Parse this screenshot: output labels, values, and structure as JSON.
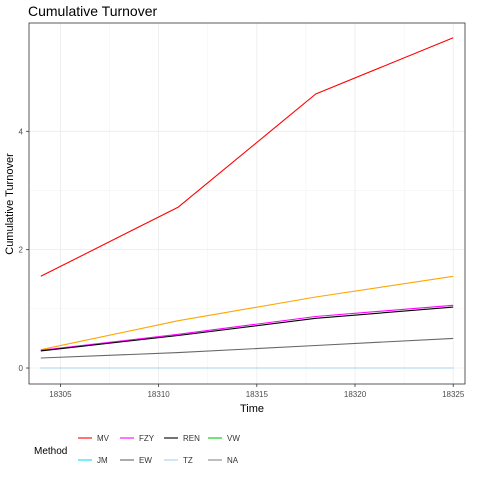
{
  "chart_data": {
    "type": "line",
    "title": "Cumulative Turnover",
    "xlabel": "Time",
    "ylabel": "Cumulative Turnover",
    "x": [
      18304,
      18311,
      18318,
      18325
    ],
    "xlim": [
      18303.4,
      18325.6
    ],
    "ylim": [
      -0.27,
      5.83
    ],
    "xticks": [
      18305,
      18310,
      18315,
      18320,
      18325
    ],
    "yticks": [
      0,
      2,
      4
    ],
    "grid": true,
    "legend_title": "Method",
    "legend_position": "bottom",
    "series": [
      {
        "name": "MV",
        "color": "#ff0000",
        "values": [
          1.55,
          2.72,
          4.63,
          5.58
        ]
      },
      {
        "name": "JM",
        "color": "#00e5ee",
        "values": [
          0.0,
          0.0,
          0.0,
          0.0
        ]
      },
      {
        "name": "FZY",
        "color": "#ff00ff",
        "values": [
          0.3,
          0.57,
          0.87,
          1.06
        ]
      },
      {
        "name": "EW",
        "color": "#666666",
        "values": [
          0.17,
          0.26,
          0.38,
          0.5
        ]
      },
      {
        "name": "REN",
        "color": "#000000",
        "values": [
          0.29,
          0.55,
          0.84,
          1.03
        ]
      },
      {
        "name": "TZ",
        "color": "#a4d3ee",
        "values": [
          0.0,
          0.0,
          0.0,
          0.0
        ]
      },
      {
        "name": "VW",
        "color": "#00cd00",
        "values": [
          0.0,
          0.0,
          0.0,
          0.0
        ]
      },
      {
        "name": "NA",
        "color": "#ffa500",
        "values": [
          0.31,
          0.8,
          1.2,
          1.55
        ]
      }
    ],
    "legend_layout": [
      [
        "MV",
        "FZY",
        "REN",
        "VW"
      ],
      [
        "JM",
        "EW",
        "TZ",
        "NA"
      ]
    ],
    "legend_swatch_colors": {
      "MV": "#ff0000",
      "FZY": "#ff00ff",
      "REN": "#000000",
      "VW": "#00cd00",
      "JM": "#00e5ee",
      "EW": "#666666",
      "TZ": "#a4d3ee",
      "NA": "#888888"
    },
    "draw_order": [
      "VW",
      "JM",
      "TZ",
      "EW",
      "NA",
      "FZY",
      "REN",
      "MV"
    ]
  }
}
